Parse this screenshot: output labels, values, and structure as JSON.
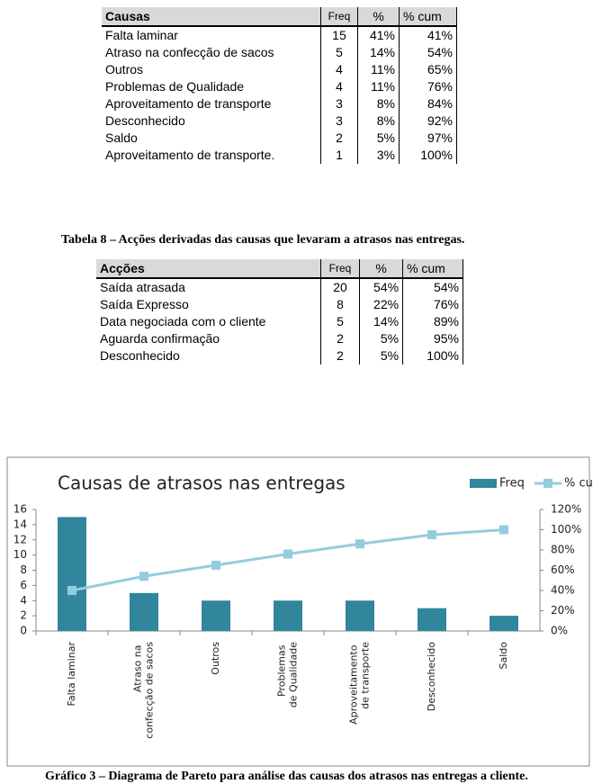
{
  "table1": {
    "header": [
      "Causas",
      "Freq",
      "%",
      "% cum"
    ],
    "rows": [
      [
        "Falta laminar",
        "15",
        "41%",
        "41%"
      ],
      [
        "Atraso na confecção de sacos",
        "5",
        "14%",
        "54%"
      ],
      [
        "Outros",
        "4",
        "11%",
        "65%"
      ],
      [
        "Problemas de Qualidade",
        "4",
        "11%",
        "76%"
      ],
      [
        "Aproveitamento de transporte",
        "3",
        "8%",
        "84%"
      ],
      [
        "Desconhecido",
        "3",
        "8%",
        "92%"
      ],
      [
        "Saldo",
        "2",
        "5%",
        "97%"
      ],
      [
        "Aproveitamento de transporte.",
        "1",
        "3%",
        "100%"
      ]
    ]
  },
  "caption1": "Tabela 8 – Acções derivadas das causas que levaram a atrasos nas entregas.",
  "table2": {
    "header": [
      "Acções",
      "Freq",
      "%",
      "% cum"
    ],
    "rows": [
      [
        "Saída atrasada",
        "20",
        "54%",
        "54%"
      ],
      [
        "Saída Expresso",
        "8",
        "22%",
        "76%"
      ],
      [
        "Data negociada com o cliente",
        "5",
        "14%",
        "89%"
      ],
      [
        "Aguarda confirmação",
        "2",
        "5%",
        "95%"
      ],
      [
        "Desconhecido",
        "2",
        "5%",
        "100%"
      ]
    ]
  },
  "chart_data": {
    "type": "pareto",
    "title": "Causas de atrasos nas entregas",
    "categories": [
      "Falta laminar",
      "Atraso na confecção de sacos",
      "Outros",
      "Problemas de Qualidade",
      "Aproveitamento de transporte",
      "Desconhecido",
      "Saldo"
    ],
    "series": [
      {
        "name": "Freq",
        "type": "bar",
        "color": "#31859c",
        "values": [
          15,
          5,
          4,
          4,
          4,
          3,
          2
        ]
      },
      {
        "name": "% cum",
        "type": "line",
        "axis": "y2",
        "color": "#93cddd",
        "values": [
          40,
          54,
          65,
          76,
          86,
          95,
          100
        ]
      }
    ],
    "ylim": [
      0,
      16
    ],
    "yticks": [
      0,
      2,
      4,
      6,
      8,
      10,
      12,
      14,
      16
    ],
    "y2lim": [
      0,
      120
    ],
    "y2ticks": [
      {
        "value": 0,
        "label": "0%"
      },
      {
        "value": 20,
        "label": "20%"
      },
      {
        "value": 40,
        "label": "40%"
      },
      {
        "value": 60,
        "label": "60%"
      },
      {
        "value": 80,
        "label": "80%"
      },
      {
        "value": 100,
        "label": "100%"
      },
      {
        "value": 120,
        "label": "120%"
      }
    ],
    "legend": "top-right"
  },
  "caption2": "Gráfico 3 – Diagrama de Pareto para análise das causas dos atrasos nas entregas a cliente."
}
